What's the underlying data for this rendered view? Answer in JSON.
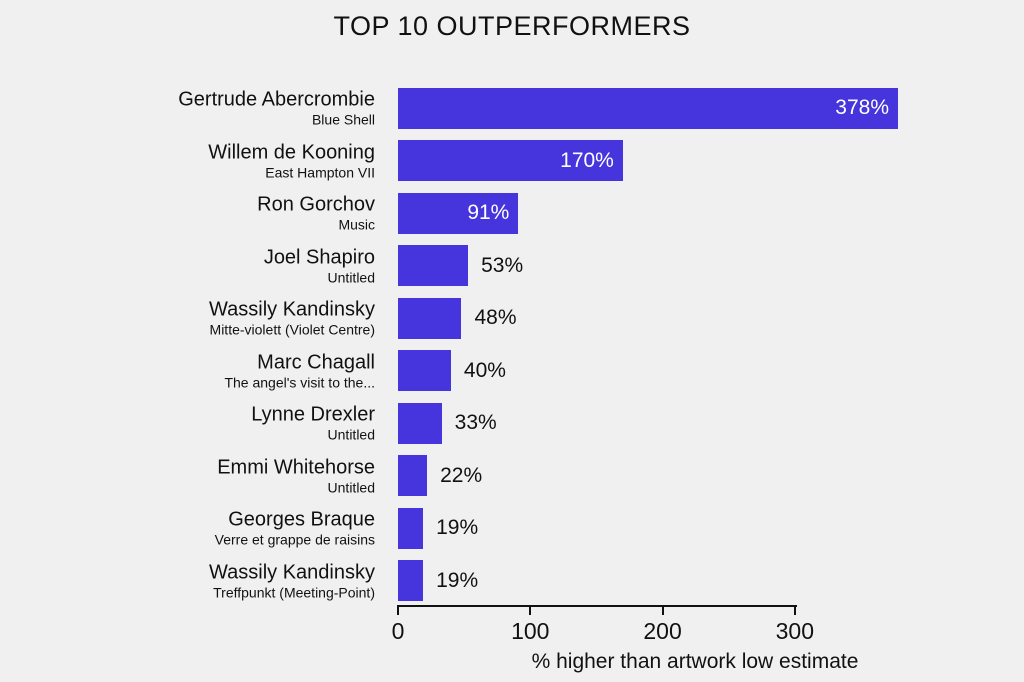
{
  "title": "TOP 10 OUTPERFORMERS",
  "colors": {
    "bar": "#4634DC",
    "background": "#F0F0F0",
    "text": "#111111",
    "value_label_inside": "#FFFFFF"
  },
  "chart_data": {
    "type": "bar",
    "orientation": "horizontal",
    "title": "TOP 10 OUTPERFORMERS",
    "xlabel": "% higher than artwork low estimate",
    "xlim": [
      0,
      400
    ],
    "xticks": [
      0,
      100,
      200,
      300
    ],
    "grid": false,
    "legend": false,
    "value_suffix": "%",
    "bars": [
      {
        "artist": "Gertrude Abercrombie",
        "artwork": "Blue Shell",
        "value": 378
      },
      {
        "artist": "Willem de Kooning",
        "artwork": "East Hampton VII",
        "value": 170
      },
      {
        "artist": "Ron Gorchov",
        "artwork": "Music",
        "value": 91
      },
      {
        "artist": "Joel Shapiro",
        "artwork": "Untitled",
        "value": 53
      },
      {
        "artist": "Wassily Kandinsky",
        "artwork": "Mitte-violett (Violet Centre)",
        "value": 48
      },
      {
        "artist": "Marc Chagall",
        "artwork": "The angel's visit to the...",
        "value": 40
      },
      {
        "artist": "Lynne Drexler",
        "artwork": "Untitled",
        "value": 33
      },
      {
        "artist": "Emmi Whitehorse",
        "artwork": "Untitled",
        "value": 22
      },
      {
        "artist": "Georges Braque",
        "artwork": "Verre et grappe de raisins",
        "value": 19
      },
      {
        "artist": "Wassily Kandinsky",
        "artwork": "Treffpunkt (Meeting-Point)",
        "value": 19
      }
    ]
  }
}
